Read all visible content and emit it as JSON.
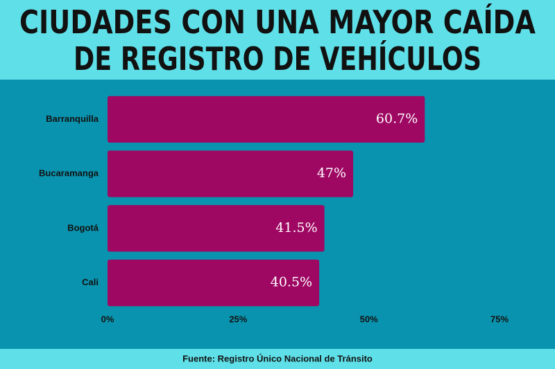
{
  "chart_data": {
    "type": "bar",
    "orientation": "horizontal",
    "title": [
      "CIUDADES CON UNA MAYOR CAÍDA",
      "DE REGISTRO DE VEHÍCULOS"
    ],
    "categories": [
      "Barranquilla",
      "Bucaramanga",
      "Bogotá",
      "Cali"
    ],
    "values": [
      60.7,
      47,
      41.5,
      40.5
    ],
    "value_labels": [
      "60.7%",
      "47%",
      "41.5%",
      "40.5%"
    ],
    "color": "#9e0762",
    "xlim": [
      0,
      75
    ],
    "xticks": [
      {
        "value": 0,
        "label": "0%"
      },
      {
        "value": 25,
        "label": "25%"
      },
      {
        "value": 50,
        "label": "50%"
      },
      {
        "value": 75,
        "label": "75%"
      }
    ],
    "grid": false,
    "source": "Fuente: Registro Único Nacional de Tránsito"
  }
}
